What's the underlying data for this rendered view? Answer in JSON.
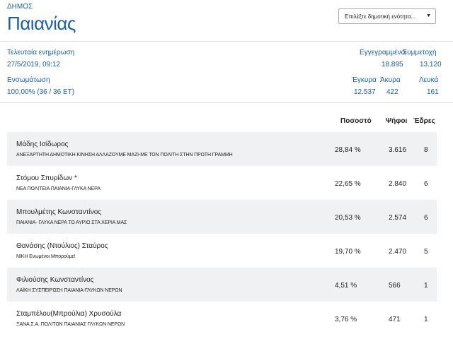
{
  "header": {
    "label": "ΔΗΜΟΣ",
    "title": "Παιανίας",
    "select_placeholder": "Επιλέξτε δημοτική ενότητα...",
    "select_arrow": "▼"
  },
  "info": {
    "last_update_label": "Τελευταία ενημέρωση",
    "last_update_value": "27/5/2019, 09:12",
    "counted_label": "Ενσωμάτωση",
    "counted_value": "100,00% (36 / 36 ΕΤ)",
    "registered_label": "Εγγεγραμμένοι",
    "registered_value": "18.895",
    "turnout_label": "Συμμετοχή",
    "turnout_value": "13.120",
    "valid_label": "Έγκυρα",
    "valid_value": "12.537",
    "invalid_label": "Άκυρα",
    "invalid_value": "422",
    "blank_label": "Λευκά",
    "blank_value": "161"
  },
  "table": {
    "headers": {
      "percent": "Ποσοστό",
      "votes": "Ψήφοι",
      "seats": "Έδρες"
    },
    "rows": [
      {
        "name": "Μάδης Ισίδωρος",
        "party": "ΑΝΕΞΑΡΤΗΤΗ ΔΗΜΟΤΙΚΗ ΚΙΝΗΣΗ ΑΛΛΑΖΟΥΜΕ ΜΑΖΙ-ΜΕ ΤΟΝ ΠΟΛΙΤΗ ΣΤΗΝ ΠΡΩΤΗ ΓΡΑΜΜΗ",
        "percent": "28,84 %",
        "votes": "3.616",
        "seats": "8"
      },
      {
        "name": "Στόμου Σπυρίδων *",
        "party": "ΝΕΑ ΠΟΛΙΤΕΙΑ ΠΑΙΑΝΙΑ-ΓΛΥΚΑ ΝΕΡΑ",
        "percent": "22,65 %",
        "votes": "2.840",
        "seats": "6"
      },
      {
        "name": "Μπουλμέτης Κωνσταντίνος",
        "party": "ΠΑΙΑΝΙΑ- ΓΛΥΚΑ ΝΕΡΑ ΤΟ ΑΥΡΙΟ ΣΤΑ ΧΕΡΙΑ ΜΑΣ",
        "percent": "20,53 %",
        "votes": "2.574",
        "seats": "6"
      },
      {
        "name": "Θανάσης (Ντούλιος) Σταύρος",
        "party": "ΝΙΚΗ Ενωμένοι Μπορούμε!",
        "percent": "19,70 %",
        "votes": "2.470",
        "seats": "5"
      },
      {
        "name": "Φιλιούσης Κωνσταντίνος",
        "party": "ΛΑΪΚΗ ΣΥΣΠΕΙΡΩΣΗ ΠΑΙΑΝΙΑ-ΓΛΥΚΩΝ ΝΕΡΩΝ",
        "percent": "4,51 %",
        "votes": "566",
        "seats": "1"
      },
      {
        "name": "Σταμπέλου(Μπρούλια) Χρυσούλα",
        "party": "ΞΑΝΑ.Σ.Α. ΠΟΛΙΤΩΝ ΠΑΙΑΝΙΑΣ ΓΛΥΚΩΝ ΝΕΡΩΝ",
        "percent": "3,76 %",
        "votes": "471",
        "seats": "1"
      }
    ]
  }
}
